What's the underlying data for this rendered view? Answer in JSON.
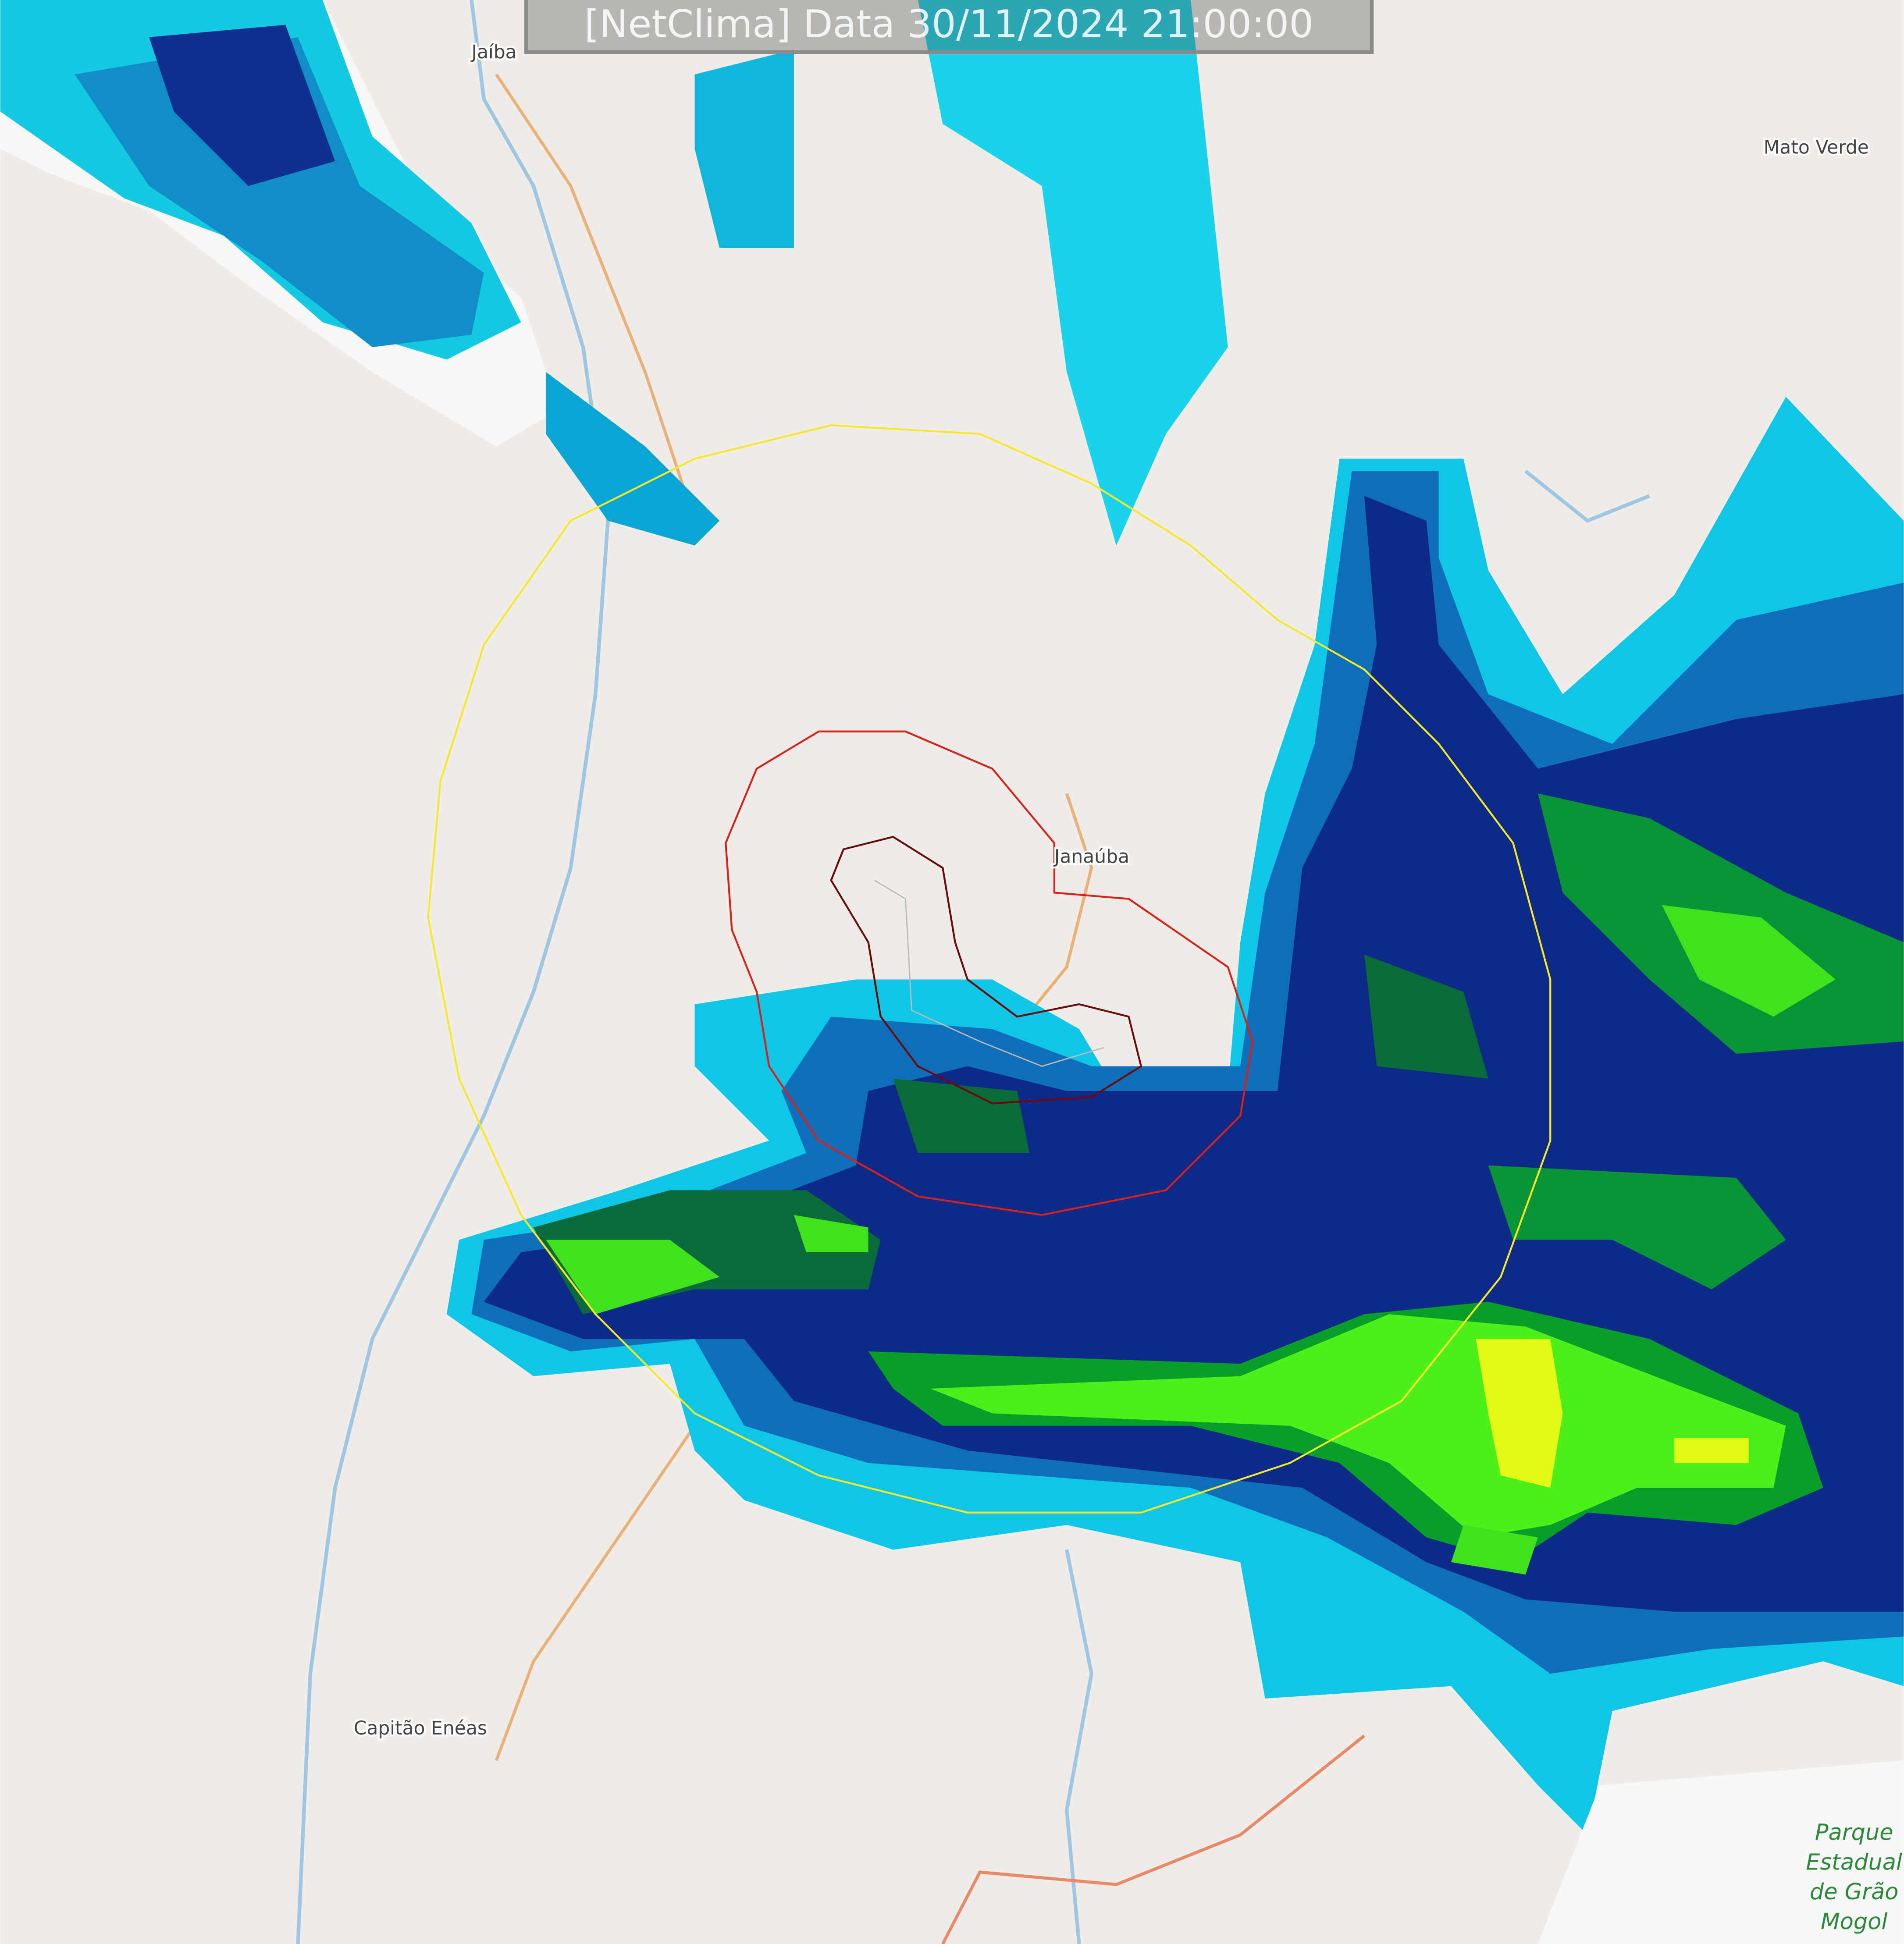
{
  "header": {
    "title": "[NetClima] Data 30/11/2024 21:00:00"
  },
  "places": [
    {
      "label": "Jaíba"
    },
    {
      "label": "Mato Verde"
    },
    {
      "label": "Janaúba"
    },
    {
      "label": "Capitão Enéas"
    }
  ],
  "park": {
    "lines": [
      "Parque",
      "Estadual",
      "de Grão",
      "Mogol"
    ]
  }
}
